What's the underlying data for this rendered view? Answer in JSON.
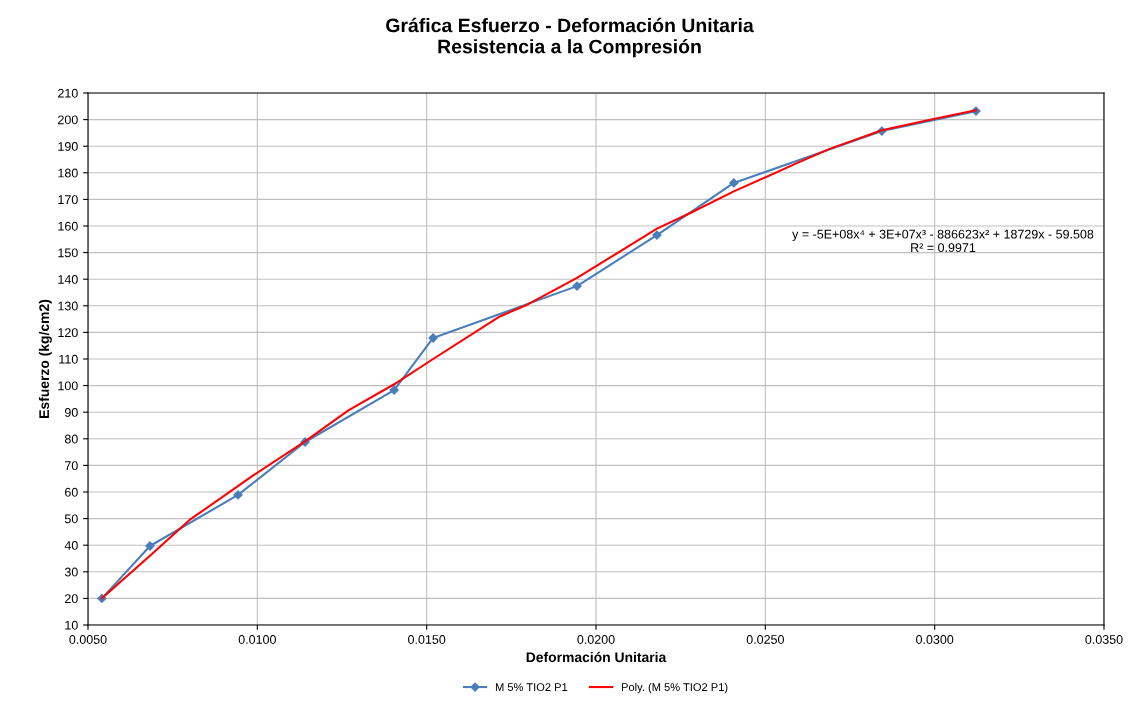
{
  "chart_data": {
    "type": "line",
    "title": "Gráfica Esfuerzo - Deformación Unitaria\nResistencia a la Compresión",
    "xlabel": "Deformación Unitaria",
    "ylabel": "Esfuerzo (kg/cm2)",
    "series": [
      {
        "name": "M 5% TIO2 P1",
        "color": "#4a7ebb",
        "marker": "diamond",
        "x": [
          0.00541,
          0.00683,
          0.00943,
          0.01141,
          0.01404,
          0.01519,
          0.01944,
          0.0218,
          0.02407,
          0.02844,
          0.03122
        ],
        "values": [
          20,
          39.7,
          58.9,
          78.8,
          98.3,
          117.9,
          137.4,
          156.6,
          176.2,
          195.7,
          203.2
        ]
      },
      {
        "name": "Poly. (M 5% TIO2 P1)",
        "color": "#ff0000",
        "marker": "none",
        "x": [
          0.00541,
          0.00683,
          0.008,
          0.0099,
          0.01141,
          0.0127,
          0.01404,
          0.01519,
          0.01716,
          0.0179,
          0.01944,
          0.0204,
          0.0218,
          0.0228,
          0.02407,
          0.026,
          0.0269,
          0.02844,
          0.0299,
          0.03122
        ],
        "values": [
          20,
          36,
          49.5,
          66.4,
          79,
          90.8,
          100.5,
          110,
          126,
          130,
          140.5,
          148,
          159,
          165,
          173,
          184,
          189,
          196,
          200,
          203.5
        ]
      }
    ],
    "annotations": [
      "y = -5E+08x⁴ + 3E+07x³ - 886623x² + 18729x - 59.508\nR² = 0.9971"
    ],
    "xlim": [
      0.005,
      0.035
    ],
    "xticks": [
      {
        "value": 0.005,
        "label": "0.0050"
      },
      {
        "value": 0.01,
        "label": "0.0100"
      },
      {
        "value": 0.015,
        "label": "0.0150"
      },
      {
        "value": 0.02,
        "label": "0.0200"
      },
      {
        "value": 0.025,
        "label": "0.0250"
      },
      {
        "value": 0.03,
        "label": "0.0300"
      },
      {
        "value": 0.035,
        "label": "0.0350"
      }
    ],
    "ylim": [
      10,
      210
    ],
    "yticks": [
      10,
      20,
      30,
      40,
      50,
      60,
      70,
      80,
      90,
      100,
      110,
      120,
      130,
      140,
      150,
      160,
      170,
      180,
      190,
      200,
      210
    ],
    "grid": true,
    "legend": "bottom",
    "line_style": "solid"
  }
}
